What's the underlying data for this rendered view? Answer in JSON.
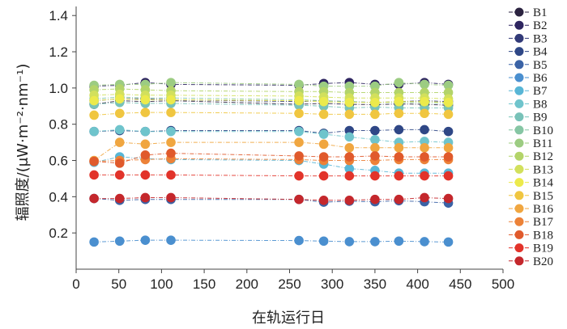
{
  "chart_data": {
    "type": "scatter",
    "title": "",
    "xlabel": "在轨运行日",
    "ylabel": "辐照度/(μW·m⁻²·nm⁻¹)",
    "xlim": [
      0,
      500
    ],
    "ylim": [
      0,
      1.45
    ],
    "xticks": [
      "0",
      "50",
      "100",
      "150",
      "200",
      "250",
      "300",
      "350",
      "400",
      "450",
      "500"
    ],
    "yticks": [
      "0.2",
      "0.4",
      "0.6",
      "0.8",
      "1.0",
      "1.2",
      "1.4"
    ],
    "grid": false,
    "legend_position": "right",
    "x": [
      21,
      51,
      81,
      111,
      261,
      290,
      320,
      350,
      378,
      408,
      436
    ],
    "series": [
      {
        "name": "B1",
        "color": "#2b2340",
        "values": [
          0.91,
          0.93,
          0.925,
          0.93,
          0.91,
          0.915,
          0.91,
          0.908,
          0.912,
          0.91,
          0.905
        ]
      },
      {
        "name": "B2",
        "color": "#2e2560",
        "values": [
          1.01,
          1.015,
          1.03,
          1.02,
          1.015,
          1.025,
          1.03,
          1.02,
          1.02,
          1.03,
          1.02
        ]
      },
      {
        "name": "B3",
        "color": "#323a78",
        "values": [
          0.93,
          0.94,
          0.94,
          0.935,
          0.925,
          0.93,
          0.925,
          0.92,
          0.925,
          0.93,
          0.925
        ]
      },
      {
        "name": "B4",
        "color": "#2f4786",
        "values": [
          0.76,
          0.765,
          0.76,
          0.765,
          0.765,
          0.75,
          0.765,
          0.765,
          0.77,
          0.77,
          0.76
        ]
      },
      {
        "name": "B5",
        "color": "#3b63a6",
        "values": [
          0.39,
          0.38,
          0.385,
          0.385,
          0.385,
          0.37,
          0.375,
          0.372,
          0.378,
          0.372,
          0.365
        ]
      },
      {
        "name": "B6",
        "color": "#4a8fcf",
        "values": [
          0.15,
          0.155,
          0.16,
          0.16,
          0.158,
          0.155,
          0.152,
          0.152,
          0.155,
          0.152,
          0.15
        ]
      },
      {
        "name": "B7",
        "color": "#58b6d6",
        "values": [
          0.59,
          0.62,
          0.61,
          0.605,
          0.6,
          0.58,
          0.555,
          0.545,
          0.53,
          0.53,
          0.53
        ]
      },
      {
        "name": "B8",
        "color": "#6fc4cc",
        "values": [
          0.76,
          0.77,
          0.76,
          0.76,
          0.76,
          0.745,
          0.73,
          0.715,
          0.7,
          0.705,
          0.7
        ]
      },
      {
        "name": "B9",
        "color": "#78c2b8",
        "values": [
          0.91,
          0.92,
          0.915,
          0.915,
          0.905,
          0.9,
          0.89,
          0.895,
          0.89,
          0.89,
          0.89
        ]
      },
      {
        "name": "B10",
        "color": "#86c6a4",
        "values": [
          0.94,
          0.95,
          0.945,
          0.945,
          0.935,
          0.93,
          0.925,
          0.92,
          0.92,
          0.92,
          0.915
        ]
      },
      {
        "name": "B11",
        "color": "#9ccc82",
        "values": [
          1.015,
          1.02,
          1.02,
          1.03,
          1.02,
          1.01,
          1.01,
          1.01,
          1.03,
          1.02,
          1.015
        ]
      },
      {
        "name": "B12",
        "color": "#b3d469",
        "values": [
          0.99,
          0.995,
          0.99,
          0.985,
          0.98,
          0.98,
          0.975,
          0.975,
          0.975,
          0.975,
          0.975
        ]
      },
      {
        "name": "B13",
        "color": "#d2e05c",
        "values": [
          0.96,
          0.965,
          0.96,
          0.96,
          0.955,
          0.95,
          0.945,
          0.945,
          0.945,
          0.945,
          0.94
        ]
      },
      {
        "name": "B14",
        "color": "#ecea4b",
        "values": [
          0.93,
          0.94,
          0.935,
          0.935,
          0.93,
          0.925,
          0.92,
          0.92,
          0.925,
          0.925,
          0.92
        ]
      },
      {
        "name": "B15",
        "color": "#f0c640",
        "values": [
          0.85,
          0.86,
          0.865,
          0.865,
          0.86,
          0.855,
          0.855,
          0.855,
          0.86,
          0.86,
          0.855
        ]
      },
      {
        "name": "B16",
        "color": "#f0a640",
        "values": [
          0.6,
          0.7,
          0.69,
          0.7,
          0.7,
          0.69,
          0.67,
          0.67,
          0.67,
          0.67,
          0.67
        ]
      },
      {
        "name": "B17",
        "color": "#ec8238",
        "values": [
          0.595,
          0.6,
          0.605,
          0.61,
          0.605,
          0.6,
          0.6,
          0.6,
          0.605,
          0.605,
          0.605
        ]
      },
      {
        "name": "B18",
        "color": "#e05a2c",
        "values": [
          0.595,
          0.585,
          0.63,
          0.64,
          0.625,
          0.62,
          0.62,
          0.625,
          0.62,
          0.62,
          0.62
        ]
      },
      {
        "name": "B19",
        "color": "#e2332a",
        "values": [
          0.52,
          0.52,
          0.52,
          0.52,
          0.515,
          0.515,
          0.515,
          0.515,
          0.515,
          0.515,
          0.515
        ]
      },
      {
        "name": "B20",
        "color": "#c4272c",
        "values": [
          0.39,
          0.39,
          0.395,
          0.395,
          0.385,
          0.38,
          0.38,
          0.385,
          0.385,
          0.395,
          0.39
        ]
      }
    ]
  }
}
